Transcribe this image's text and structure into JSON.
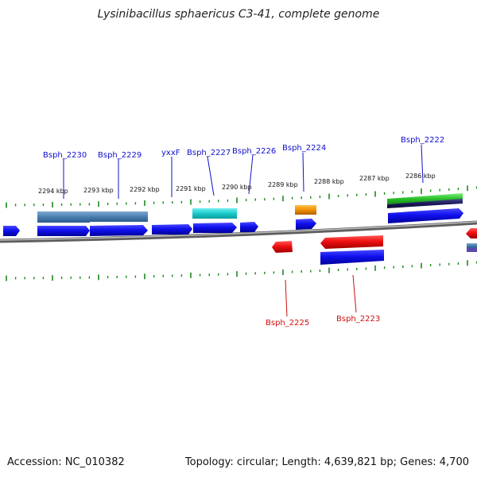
{
  "title": "Lysinibacillus sphaericus C3-41, complete genome",
  "footer": {
    "accession": "Accession: NC_010382",
    "summary": "Topology: circular; Length: 4,639,821 bp; Genes: 4,700"
  },
  "colors": {
    "scale_ticks": "#1a8a1a",
    "backbone": "#8a8a8a",
    "forward_label": "#1010cc",
    "reverse_label": "#cc1010",
    "coordinate_text": "#111111"
  },
  "scale_labels": [
    {
      "kbp": 2294,
      "text": "2294 kbp"
    },
    {
      "kbp": 2293,
      "text": "2293 kbp"
    },
    {
      "kbp": 2292,
      "text": "2292 kbp"
    },
    {
      "kbp": 2291,
      "text": "2291 kbp"
    },
    {
      "kbp": 2290,
      "text": "2290 kbp"
    },
    {
      "kbp": 2289,
      "text": "2289 kbp"
    },
    {
      "kbp": 2288,
      "text": "2288 kbp"
    },
    {
      "kbp": 2287,
      "text": "2287 kbp"
    },
    {
      "kbp": 2286,
      "text": "2286 kbp"
    }
  ],
  "gene_labels": [
    {
      "id": "g2230",
      "text": "Bsph_2230",
      "strand": "forward"
    },
    {
      "id": "g2229",
      "text": "Bsph_2229",
      "strand": "forward"
    },
    {
      "id": "gyxxf",
      "text": "yxxF",
      "strand": "forward"
    },
    {
      "id": "g2227",
      "text": "Bsph_2227",
      "strand": "forward"
    },
    {
      "id": "g2226",
      "text": "Bsph_2226",
      "strand": "forward"
    },
    {
      "id": "g2224",
      "text": "Bsph_2224",
      "strand": "forward"
    },
    {
      "id": "g2222",
      "text": "Bsph_2222",
      "strand": "forward"
    },
    {
      "id": "g2225",
      "text": "Bsph_2225",
      "strand": "reverse"
    },
    {
      "id": "g2223",
      "text": "Bsph_2223",
      "strand": "reverse"
    }
  ]
}
